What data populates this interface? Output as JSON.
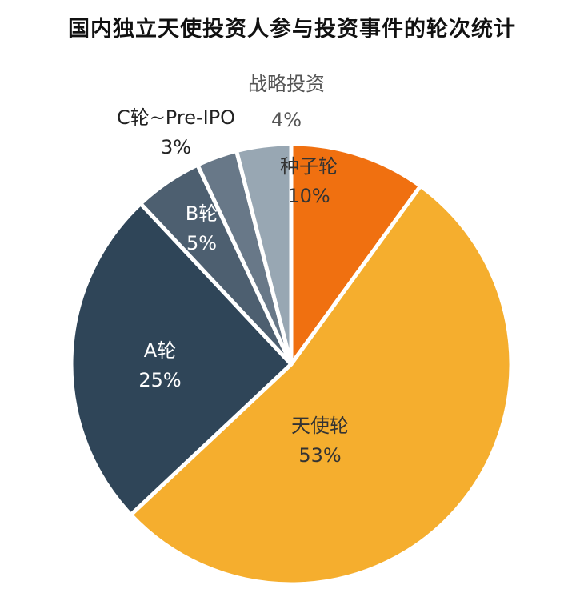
{
  "chart_data": {
    "type": "pie",
    "title": "国内独立天使投资人参与投资事件的轮次统计",
    "slices": [
      {
        "name": "种子轮",
        "value": 10,
        "label": "10%",
        "color": "#F07010",
        "text_color": "#333333"
      },
      {
        "name": "天使轮",
        "value": 53,
        "label": "53%",
        "color": "#F5AE2E",
        "text_color": "#333333"
      },
      {
        "name": "A轮",
        "value": 25,
        "label": "25%",
        "color": "#2F4558",
        "text_color": "#FFFFFF"
      },
      {
        "name": "B轮",
        "value": 5,
        "label": "5%",
        "color": "#4D5F70",
        "text_color": "#FFFFFF"
      },
      {
        "name": "C轮~Pre-IPO",
        "value": 3,
        "label": "3%",
        "color": "#687888",
        "text_color": "#222222"
      },
      {
        "name": "战略投资",
        "value": 4,
        "label": "4%",
        "color": "#98A7B3",
        "text_color": "#555555"
      }
    ]
  }
}
